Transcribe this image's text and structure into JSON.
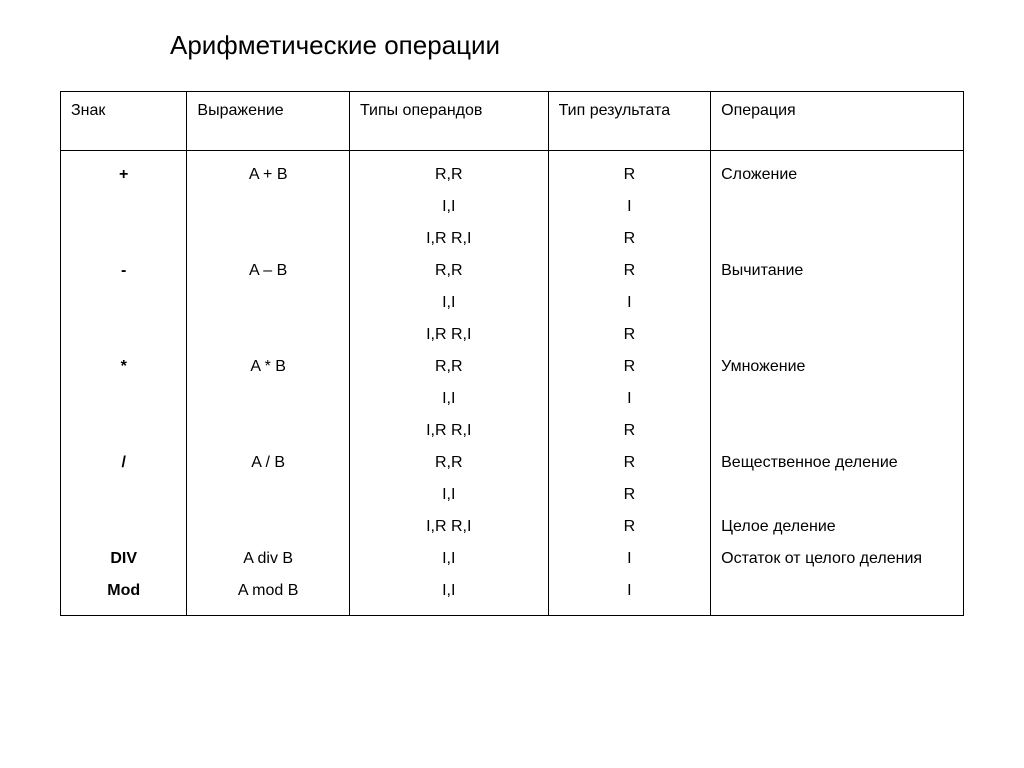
{
  "title": "Арифметические операции",
  "table": {
    "columns": [
      "Знак",
      "Выражение",
      "Типы операндов",
      "Тип результата",
      "Операция"
    ],
    "signs": [
      "+",
      "-",
      "*",
      "/",
      "DIV",
      "Mod"
    ],
    "expressions": [
      "A + B",
      "A – B",
      "A * B",
      "A / B",
      "A div B",
      "A mod B"
    ],
    "operand_types": [
      "R,R",
      "I,I",
      "I,R   R,I",
      "R,R",
      "I,I",
      "I,R   R,I",
      "R,R",
      "I,I",
      "I,R   R,I",
      "R,R",
      "I,I",
      "I,R   R,I",
      "I,I",
      "I,I"
    ],
    "result_types": [
      "R",
      "I",
      "R",
      "R",
      "I",
      "R",
      "R",
      "I",
      "R",
      "R",
      "R",
      "R",
      "I",
      "I"
    ],
    "operations": [
      "Сложение",
      "Вычитание",
      "Умножение",
      "Вещественное деление",
      "Целое деление",
      "Остаток от целого деления"
    ]
  },
  "style": {
    "background_color": "#ffffff",
    "text_color": "#000000",
    "border_color": "#000000",
    "title_fontsize": 26,
    "header_fontsize": 16,
    "cell_fontsize": 16,
    "line_height": 2.0
  }
}
